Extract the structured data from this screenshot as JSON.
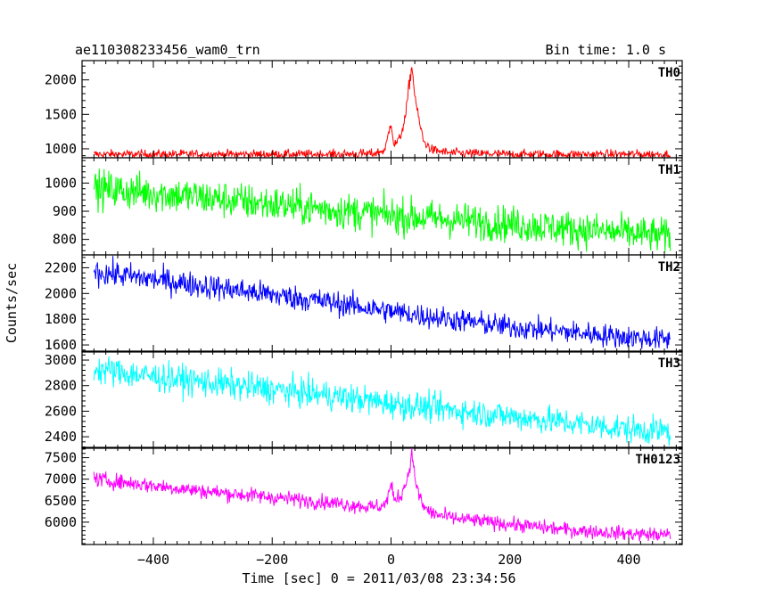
{
  "chart_data": {
    "type": "line",
    "title": "ae110308233456_wam0_trn",
    "subtitle": "Bin time: 1.0 s",
    "xlabel": "Time [sec] 0 = 2011/03/08 23:34:56",
    "ylabel": "Counts/sec",
    "xlim": [
      -520,
      490
    ],
    "x_ticks": [
      -400,
      -200,
      0,
      200,
      400
    ],
    "grid": false,
    "series": [
      {
        "name": "TH0",
        "color": "#ff0000",
        "ylim": [
          870,
          2280
        ],
        "y_ticks": [
          1000,
          1500,
          2000
        ],
        "x": [
          -500,
          -400,
          -300,
          -200,
          -100,
          -30,
          -10,
          0,
          5,
          15,
          25,
          30,
          35,
          40,
          45,
          55,
          70,
          100,
          200,
          300,
          400,
          470
        ],
        "values": [
          920,
          920,
          920,
          920,
          920,
          930,
          980,
          1400,
          1050,
          1150,
          1500,
          1900,
          2200,
          1800,
          1500,
          1100,
          980,
          940,
          920,
          920,
          920,
          920
        ]
      },
      {
        "name": "TH1",
        "color": "#00ff00",
        "ylim": [
          745,
          1090
        ],
        "y_ticks": [
          800,
          900,
          1000
        ],
        "x": [
          -500,
          -400,
          -300,
          -200,
          -100,
          0,
          100,
          200,
          300,
          400,
          470
        ],
        "values": [
          980,
          965,
          945,
          925,
          905,
          885,
          870,
          855,
          838,
          822,
          810
        ]
      },
      {
        "name": "TH2",
        "color": "#0000ff",
        "ylim": [
          1545,
          2300
        ],
        "y_ticks": [
          1600,
          1800,
          2000,
          2200
        ],
        "x": [
          -500,
          -400,
          -300,
          -200,
          -100,
          0,
          100,
          200,
          300,
          400,
          470
        ],
        "values": [
          2170,
          2110,
          2050,
          1990,
          1930,
          1860,
          1800,
          1740,
          1700,
          1660,
          1640
        ]
      },
      {
        "name": "TH3",
        "color": "#00ffff",
        "ylim": [
          2310,
          3070
        ],
        "y_ticks": [
          2400,
          2600,
          2800,
          3000
        ],
        "x": [
          -500,
          -400,
          -300,
          -200,
          -100,
          0,
          100,
          200,
          300,
          400,
          470
        ],
        "values": [
          2930,
          2870,
          2820,
          2770,
          2720,
          2660,
          2610,
          2560,
          2510,
          2460,
          2440
        ]
      },
      {
        "name": "TH0123",
        "color": "#ff00ff",
        "ylim": [
          5480,
          7740
        ],
        "y_ticks": [
          6000,
          6500,
          7000,
          7500
        ],
        "x": [
          -500,
          -400,
          -300,
          -200,
          -100,
          -30,
          -10,
          0,
          5,
          15,
          25,
          30,
          35,
          40,
          45,
          55,
          70,
          100,
          200,
          300,
          400,
          470
        ],
        "values": [
          7000,
          6850,
          6700,
          6580,
          6450,
          6350,
          6400,
          6850,
          6550,
          6600,
          6900,
          7200,
          7600,
          7100,
          6700,
          6350,
          6200,
          6100,
          5950,
          5820,
          5730,
          5700
        ]
      }
    ]
  }
}
